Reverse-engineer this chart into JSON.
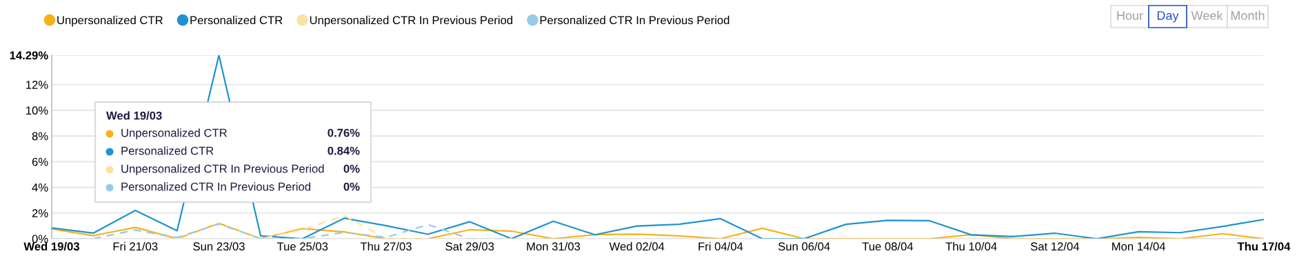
{
  "chart_data": {
    "type": "line",
    "categories": [
      "Wed 19/03",
      null,
      "Fri 21/03",
      null,
      "Sun 23/03",
      null,
      "Tue 25/03",
      null,
      "Thu 27/03",
      null,
      "Sat 29/03",
      null,
      "Mon 31/03",
      null,
      "Wed 02/04",
      null,
      "Fri 04/04",
      null,
      "Sun 06/04",
      null,
      "Tue 08/04",
      null,
      "Thu 10/04",
      null,
      "Sat 12/04",
      null,
      "Mon 14/04",
      null,
      null,
      "Thu 17/04"
    ],
    "series": [
      {
        "name": "Unpersonalized CTR",
        "color": "#f5b31b",
        "line_style": "solid",
        "values": [
          0.76,
          0.24,
          0.88,
          0,
          1.2,
          0,
          0.79,
          0.53,
          0,
          0,
          0.7,
          0.59,
          0,
          0.31,
          0.35,
          0.22,
          0,
          0.81,
          0,
          0,
          0,
          0,
          0.31,
          0,
          0,
          0,
          0.1,
          0,
          0.39,
          0
        ]
      },
      {
        "name": "Personalized CTR",
        "color": "#1f93cf",
        "line_style": "solid",
        "values": [
          0.84,
          0.44,
          2.2,
          0.62,
          14.29,
          0.22,
          0,
          1.6,
          1.01,
          0.35,
          1.32,
          0,
          1.36,
          0.31,
          0.99,
          1.12,
          1.56,
          0,
          0,
          1.12,
          1.43,
          1.4,
          0.3,
          0.17,
          0.43,
          0,
          0.54,
          0.47,
          0.95,
          1.5
        ]
      },
      {
        "name": "Unpersonalized CTR In Previous Period",
        "color": "#fce2a4",
        "line_style": "dashed",
        "values": [
          0,
          0,
          0.7,
          0,
          1.2,
          0,
          0.7,
          1.8,
          0,
          0,
          0,
          0,
          null,
          null,
          null,
          null,
          null,
          null,
          null,
          null,
          null,
          null,
          null,
          null,
          null,
          null,
          null,
          null,
          null,
          null
        ]
      },
      {
        "name": "Personalized CTR In Previous Period",
        "color": "#97cbea",
        "line_style": "dashed",
        "values": [
          0,
          0,
          0.68,
          0.1,
          1.15,
          0,
          0,
          0.5,
          0.1,
          1.1,
          0,
          0,
          null,
          null,
          null,
          null,
          null,
          null,
          null,
          null,
          null,
          null,
          null,
          null,
          null,
          null,
          null,
          null,
          null,
          null
        ]
      }
    ],
    "ylim": [
      0,
      14.29
    ],
    "yticks": [
      {
        "value": 0,
        "label": "0%"
      },
      {
        "value": 2,
        "label": "2%"
      },
      {
        "value": 4,
        "label": "4%"
      },
      {
        "value": 6,
        "label": "6%"
      },
      {
        "value": 8,
        "label": "8%"
      },
      {
        "value": 10,
        "label": "10%"
      },
      {
        "value": 12,
        "label": "12%"
      },
      {
        "value": 14.29,
        "label": "14.29%"
      }
    ],
    "grid": "y",
    "legend": "top left",
    "marker": "none",
    "annotations": [
      "Hour",
      "Day",
      "Week",
      "Month",
      "Wed 19/03",
      "Unpersonalized CTR",
      "0.76%",
      "Personalized CTR",
      "0.84%",
      "Unpersonalized CTR In Previous Period",
      "0%",
      "Personalized CTR In Previous Period",
      "0%"
    ]
  }
}
